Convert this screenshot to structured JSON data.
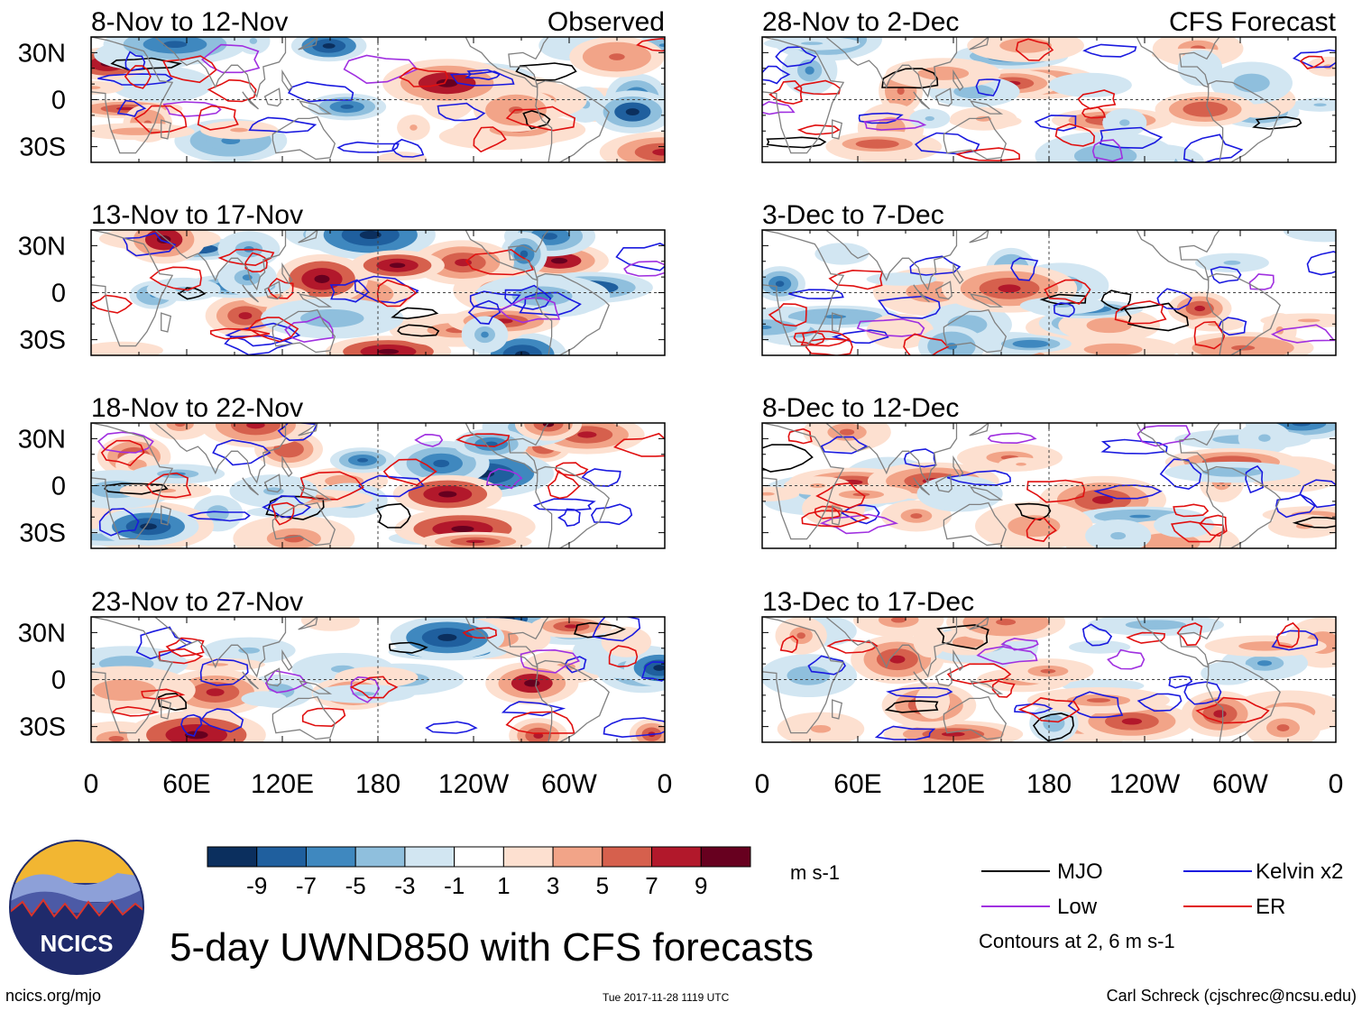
{
  "title": "5-day UWND850 with CFS forecasts",
  "footer": {
    "url": "ncics.org/mjo",
    "timestamp": "Tue 2017-11-28 1119 UTC",
    "credit": "Carl Schreck (cjschrec@ncsu.edu)"
  },
  "logo": {
    "label": "NCICS"
  },
  "colorbar": {
    "unit": "m s-1",
    "tick_labels": [
      "-9",
      "-7",
      "-5",
      "-3",
      "-1",
      "1",
      "3",
      "5",
      "7",
      "9"
    ],
    "colors": [
      "#0b2f5e",
      "#1f5f9e",
      "#3f88bf",
      "#8fbfdd",
      "#d2e6f2",
      "#ffffff",
      "#fde0d0",
      "#f2a488",
      "#d6604d",
      "#b2182b",
      "#67001f"
    ]
  },
  "legend": {
    "items": [
      {
        "label": "MJO",
        "color": "#000000"
      },
      {
        "label": "Kelvin x2",
        "color": "#1a1adf"
      },
      {
        "label": "Low",
        "color": "#a030e0"
      },
      {
        "label": "ER",
        "color": "#e01010"
      }
    ],
    "contours_note": "Contours at 2, 6 m s-1"
  },
  "chart_data": {
    "type": "heatmap",
    "variable": "850-hPa zonal wind anomaly (UWND850)",
    "unit": "m s-1",
    "x_tick_labels": [
      "0",
      "60E",
      "120E",
      "180",
      "120W",
      "60W",
      "0"
    ],
    "y_tick_labels": [
      "30N",
      "0",
      "30S"
    ],
    "xlim": [
      0,
      360
    ],
    "ylim": [
      -40,
      40
    ],
    "color_levels": [
      -9,
      -7,
      -5,
      -3,
      -1,
      1,
      3,
      5,
      7,
      9
    ],
    "column_headers": [
      "Observed",
      "CFS Forecast"
    ],
    "panels": [
      {
        "column": "Observed",
        "period": "8-Nov to 12-Nov"
      },
      {
        "column": "Observed",
        "period": "13-Nov to 17-Nov"
      },
      {
        "column": "Observed",
        "period": "18-Nov to 22-Nov"
      },
      {
        "column": "Observed",
        "period": "23-Nov to 27-Nov"
      },
      {
        "column": "CFS Forecast",
        "period": "28-Nov to 2-Dec"
      },
      {
        "column": "CFS Forecast",
        "period": "3-Dec to 7-Dec"
      },
      {
        "column": "CFS Forecast",
        "period": "8-Dec to 12-Dec"
      },
      {
        "column": "CFS Forecast",
        "period": "13-Dec to 17-Dec"
      }
    ]
  }
}
